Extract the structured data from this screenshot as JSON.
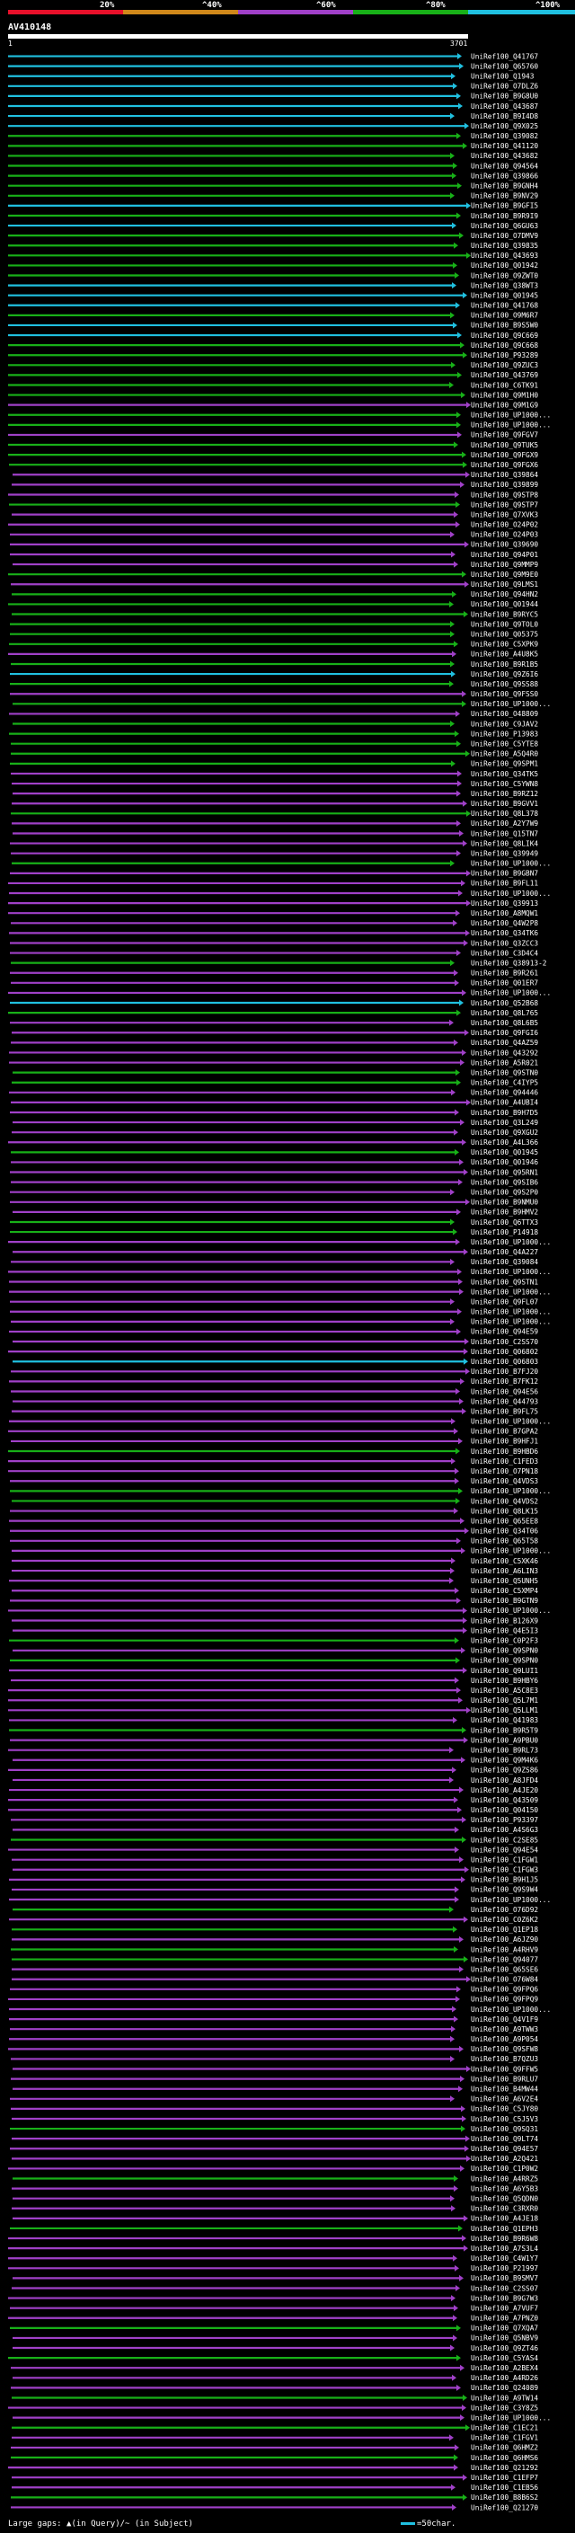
{
  "legend": {
    "labels": [
      "20%",
      "^40%",
      "^60%",
      "^80%",
      "^100%"
    ],
    "colors": [
      "#e8102a",
      "#d0881a",
      "#a040c8",
      "#18b018",
      "#20c0e0"
    ]
  },
  "query": {
    "name": "AV410148",
    "start": "1",
    "end": "3701"
  },
  "hits": [
    "UniRef100_Q41767",
    "UniRef100_Q65760",
    "UniRef100_Q1943",
    "UniRef100_O7DLZ6",
    "UniRef100_B9G8U0",
    "UniRef100_Q43687",
    "UniRef100_B9I4D8",
    "UniRef100_Q9X025",
    "UniRef100_Q39082",
    "UniRef100_Q41120",
    "UniRef100_Q43682",
    "UniRef100_Q94564",
    "UniRef100_Q39866",
    "UniRef100_B9GNH4",
    "UniRef100_B9NV29",
    "UniRef100_B9GFI5",
    "UniRef100_B9R9I9",
    "UniRef100_Q6GU63",
    "UniRef100_O7DMV9",
    "UniRef100_Q39835",
    "UniRef100_Q43693",
    "UniRef100_Q01942",
    "UniRef100_O9ZWT0",
    "UniRef100_Q38WT3",
    "UniRef100_Q01945",
    "UniRef100_Q41768",
    "UniRef100_O9M6R7",
    "UniRef100_B9S5W0",
    "UniRef100_Q9C669",
    "UniRef100_Q9C668",
    "UniRef100_P93289",
    "UniRef100_Q9ZUC3",
    "UniRef100_Q43769",
    "UniRef100_C6TK91",
    "UniRef100_Q9M1H0",
    "UniRef100_Q9M1G9",
    "UniRef100_UP1000...",
    "UniRef100_UP1000...",
    "UniRef100_Q9FGV7",
    "UniRef100_Q9TUK5",
    "UniRef100_Q9FGX9",
    "UniRef100_Q9FGX6",
    "UniRef100_Q39864",
    "UniRef100_Q39899",
    "UniRef100_Q9STP8",
    "UniRef100_Q9STP7",
    "UniRef100_Q7XVK3",
    "UniRef100_O24P02",
    "UniRef100_O24P03",
    "UniRef100_Q39690",
    "UniRef100_Q94P01",
    "UniRef100_Q9MMP9",
    "UniRef100_Q9M9E0",
    "UniRef100_Q9LMS1",
    "UniRef100_Q94HN2",
    "UniRef100_Q01944",
    "UniRef100_B9RYC5",
    "UniRef100_Q9TOL0",
    "UniRef100_Q05375",
    "UniRef100_C5XPK9",
    "UniRef100_A4U8K5",
    "UniRef100_B9R1B5",
    "UniRef100_Q9Z6I6",
    "UniRef100_Q9SS88",
    "UniRef100_Q9FSS0",
    "UniRef100_UP1000...",
    "UniRef100_O48809",
    "UniRef100_C9JAV2",
    "UniRef100_P13983",
    "UniRef100_C5YTE8",
    "UniRef100_A5Q4R0",
    "UniRef100_Q9SPM1",
    "UniRef100_Q34TK5",
    "UniRef100_C5YWN8",
    "UniRef100_B9RZ12",
    "UniRef100_B9GVV1",
    "UniRef100_Q8L378",
    "UniRef100_A2Y7W9",
    "UniRef100_Q15TN7",
    "UniRef100_Q8LIK4",
    "UniRef100_Q39949",
    "UniRef100_UP1000...",
    "UniRef100_B9GBN7",
    "UniRef100_B9FL11",
    "UniRef100_UP1000...",
    "UniRef100_Q39913",
    "UniRef100_A8MQW1",
    "UniRef100_Q4W2P8",
    "UniRef100_Q34TK6",
    "UniRef100_Q3ZCC3",
    "UniRef100_C3D4C4",
    "UniRef100_Q38913-2",
    "UniRef100_B9R261",
    "UniRef100_Q01ER7",
    "UniRef100_UP1000...",
    "UniRef100_Q52B68",
    "UniRef100_Q8L765",
    "UniRef100_Q8L6B5",
    "UniRef100_Q9FGI6",
    "UniRef100_Q4AZ59",
    "UniRef100_Q43292",
    "UniRef100_A5R021",
    "UniRef100_Q9STN0",
    "UniRef100_C4IYP5",
    "UniRef100_Q94446",
    "UniRef100_A4UBI4",
    "UniRef100_B9H7D5",
    "UniRef100_Q3L249",
    "UniRef100_Q9XGU2",
    "UniRef100_A4L366",
    "UniRef100_Q01945",
    "UniRef100_Q01946",
    "UniRef100_Q95RN1",
    "UniRef100_Q9SIB6",
    "UniRef100_Q9S2P0",
    "UniRef100_B9NMU0",
    "UniRef100_B9HMV2",
    "UniRef100_Q6TTX3",
    "UniRef100_P14918",
    "UniRef100_UP1000...",
    "UniRef100_Q4A227",
    "UniRef100_Q39084",
    "UniRef100_UP1000...",
    "UniRef100_Q9STN1",
    "UniRef100_UP1000...",
    "UniRef100_Q9FL07",
    "UniRef100_UP1000...",
    "UniRef100_UP1000...",
    "UniRef100_Q94E59",
    "UniRef100_C2SS70",
    "UniRef100_Q06802",
    "UniRef100_Q06803",
    "UniRef100_B7FJ20",
    "UniRef100_B7FK12",
    "UniRef100_Q94E56",
    "UniRef100_Q44793",
    "UniRef100_B9FL75",
    "UniRef100_UP1000...",
    "UniRef100_B7GPA2",
    "UniRef100_B9HFJ1",
    "UniRef100_B9HBD6",
    "UniRef100_C1FED3",
    "UniRef100_O7PN18",
    "UniRef100_Q4VDS3",
    "UniRef100_UP1000...",
    "UniRef100_Q4VDS2",
    "UniRef100_Q8LK15",
    "UniRef100_Q65EE8",
    "UniRef100_Q34T06",
    "UniRef100_Q65T58",
    "UniRef100_UP1000...",
    "UniRef100_C5XK46",
    "UniRef100_A6LIN3",
    "UniRef100_Q5UNH5",
    "UniRef100_C5XMP4",
    "UniRef100_B9GTN9",
    "UniRef100_UP1000...",
    "UniRef100_B126X9",
    "UniRef100_Q4E5I3",
    "UniRef100_C0P2F3",
    "UniRef100_Q9SPN0",
    "UniRef100_Q9SPN0",
    "UniRef100_Q9LUI1",
    "UniRef100_B9HBY6",
    "UniRef100_A5C8E3",
    "UniRef100_Q5L7M1",
    "UniRef100_Q5LLM1",
    "UniRef100_Q41983",
    "UniRef100_B9R5T9",
    "UniRef100_A9PBU0",
    "UniRef100_B9RL73",
    "UniRef100_Q9M4K6",
    "UniRef100_Q9ZS86",
    "UniRef100_A8JFD4",
    "UniRef100_A4JE20",
    "UniRef100_Q43509",
    "UniRef100_Q04150",
    "UniRef100_P93397",
    "UniRef100_A4S6G3",
    "UniRef100_C2SE85",
    "UniRef100_Q94E54",
    "UniRef100_C1FGW1",
    "UniRef100_C1FGW3",
    "UniRef100_B9H1J5",
    "UniRef100_Q9S9W4",
    "UniRef100_UP1000...",
    "UniRef100_O76D92",
    "UniRef100_C0Z6K2",
    "UniRef100_Q1EP18",
    "UniRef100_A6JZ90",
    "UniRef100_A4RHV9",
    "UniRef100_Q94077",
    "UniRef100_Q65SE6",
    "UniRef100_O76W84",
    "UniRef100_Q9FPQ6",
    "UniRef100_Q9FPQ9",
    "UniRef100_UP1000...",
    "UniRef100_Q4V1F9",
    "UniRef100_A9TWW3",
    "UniRef100_A9P054",
    "UniRef100_Q9SFW8",
    "UniRef100_B7QZU3",
    "UniRef100_Q9FFW5",
    "UniRef100_B9RLU7",
    "UniRef100_B4MW44",
    "UniRef100_A6V2E4",
    "UniRef100_C5JY80",
    "UniRef100_C5J5V3",
    "UniRef100_Q9SQ31",
    "UniRef100_Q9LT74",
    "UniRef100_Q94E57",
    "UniRef100_A2Q421",
    "UniRef100_C1P0W2",
    "UniRef100_A4RRZ5",
    "UniRef100_A6Y5B3",
    "UniRef100_Q5QDN0",
    "UniRef100_C3RXR0",
    "UniRef100_A4JE18",
    "UniRef100_Q1EPH3",
    "UniRef100_B9R6W8",
    "UniRef100_A7S3L4",
    "UniRef100_C4W1Y7",
    "UniRef100_P21997",
    "UniRef100_B9SMV7",
    "UniRef100_C2SS07",
    "UniRef100_B9G7W3",
    "UniRef100_A7VUF7",
    "UniRef100_A7PNZ0",
    "UniRef100_Q7XQA7",
    "UniRef100_Q5NBV9",
    "UniRef100_Q9ZT46",
    "UniRef100_C5YAS4",
    "UniRef100_A2BEX4",
    "UniRef100_A4RD26",
    "UniRef100_Q24089",
    "UniRef100_A9TW14",
    "UniRef100_C3Y8Z5",
    "UniRef100_UP1000...",
    "UniRef100_C1EC21",
    "UniRef100_C1FGV1",
    "UniRef100_Q6HMZ2",
    "UniRef100_Q6HMS6",
    "UniRef100_Q21292",
    "UniRef100_C1EFP7",
    "UniRef100_C1EB56",
    "UniRef100_B8B6S2",
    "UniRef100_Q21270"
  ],
  "footer": {
    "note": "Large gaps: ▲(in Query)/~ (in Subject)",
    "scale": "=50char."
  }
}
